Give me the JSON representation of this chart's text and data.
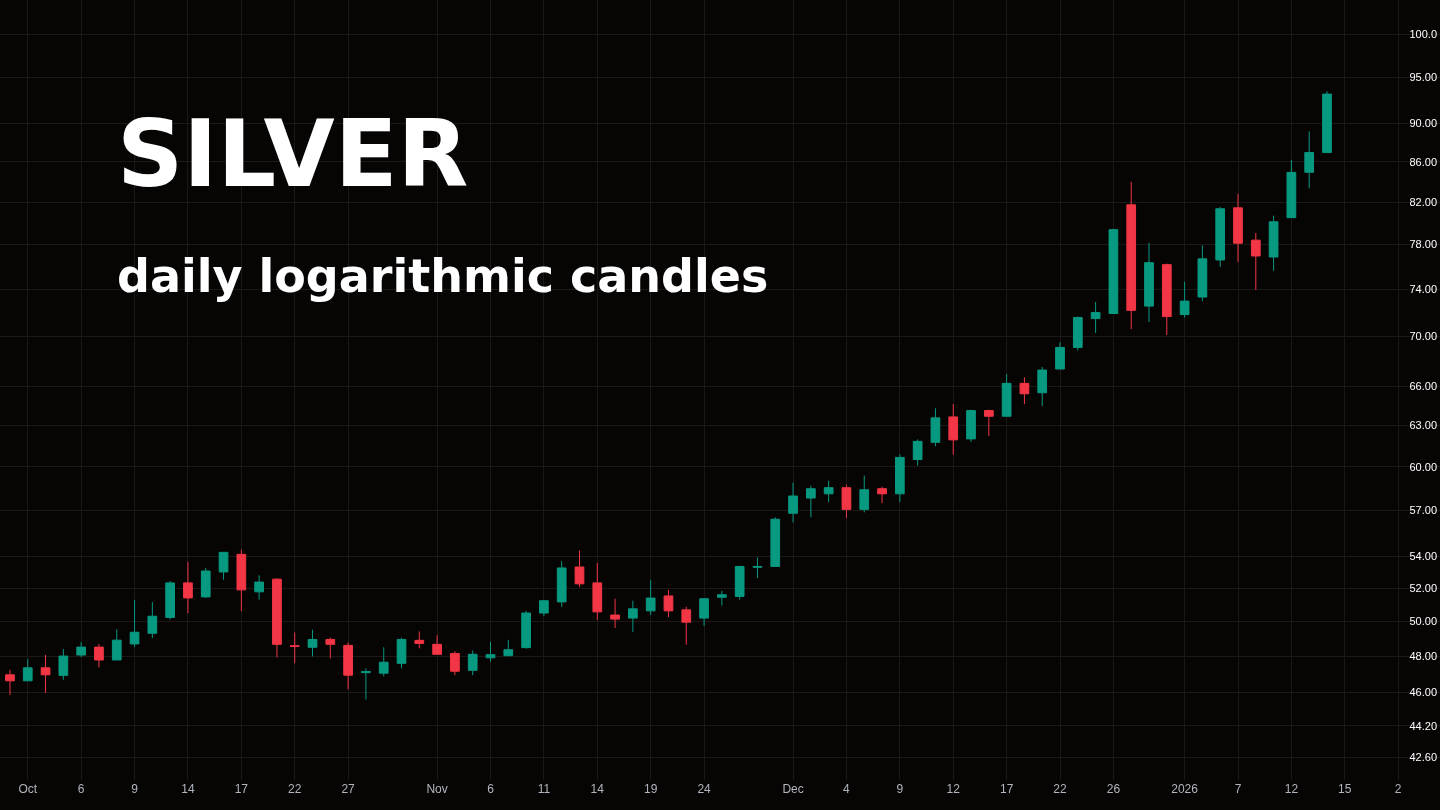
{
  "chart_data": {
    "type": "candlestick",
    "title": "SILVER",
    "subtitle": "daily logarithmic candles",
    "categories": [
      null,
      "Oct",
      null,
      null,
      "6",
      null,
      null,
      "9",
      null,
      null,
      "14",
      null,
      null,
      "17",
      null,
      null,
      "22",
      null,
      null,
      "27",
      null,
      null,
      null,
      null,
      "Nov",
      null,
      null,
      "6",
      null,
      null,
      "11",
      null,
      null,
      "14",
      null,
      null,
      "19",
      null,
      null,
      "24",
      null,
      null,
      null,
      null,
      "Dec",
      null,
      null,
      "4",
      null,
      null,
      "9",
      null,
      null,
      "12",
      null,
      null,
      "17",
      null,
      null,
      "22",
      null,
      null,
      "26",
      null,
      null,
      null,
      "2026",
      null,
      null,
      "7",
      null,
      null,
      "12",
      null,
      null,
      "15",
      null,
      null,
      "2"
    ],
    "ohlc": [
      [
        46.95,
        47.23,
        45.85,
        46.62
      ],
      [
        46.62,
        47.83,
        46.62,
        47.34
      ],
      [
        47.34,
        48.06,
        45.96,
        46.95
      ],
      [
        46.92,
        48.4,
        46.68,
        48.0
      ],
      [
        48.06,
        48.8,
        47.94,
        48.51
      ],
      [
        48.51,
        48.69,
        47.36,
        47.78
      ],
      [
        47.78,
        49.54,
        47.78,
        48.91
      ],
      [
        48.69,
        51.29,
        48.51,
        49.37
      ],
      [
        49.31,
        51.16,
        49.03,
        50.31
      ],
      [
        50.24,
        52.45,
        50.12,
        52.33
      ],
      [
        52.33,
        53.63,
        50.49,
        51.41
      ],
      [
        51.47,
        53.26,
        51.41,
        53.07
      ],
      [
        53.01,
        54.25,
        52.52,
        54.25
      ],
      [
        54.12,
        54.43,
        50.61,
        51.9
      ],
      [
        51.78,
        52.8,
        51.3,
        52.38
      ],
      [
        52.56,
        52.62,
        47.93,
        48.67
      ],
      [
        48.59,
        49.36,
        47.59,
        48.55
      ],
      [
        48.5,
        49.52,
        47.98,
        48.95
      ],
      [
        48.95,
        49.06,
        47.87,
        48.67
      ],
      [
        48.61,
        48.78,
        46.15,
        46.93
      ],
      [
        47.07,
        47.31,
        45.59,
        47.13
      ],
      [
        47.04,
        48.5,
        46.87,
        47.65
      ],
      [
        47.59,
        49.06,
        47.31,
        48.95
      ],
      [
        48.9,
        49.42,
        48.44,
        48.72
      ],
      [
        48.67,
        49.2,
        48.1,
        48.1
      ],
      [
        48.15,
        48.27,
        46.93,
        47.15
      ],
      [
        47.2,
        48.32,
        46.93,
        48.1
      ],
      [
        47.9,
        48.82,
        47.68,
        48.08
      ],
      [
        48.02,
        48.93,
        48.02,
        48.36
      ],
      [
        48.48,
        50.63,
        48.42,
        50.5
      ],
      [
        50.5,
        51.3,
        50.32,
        51.24
      ],
      [
        51.17,
        53.69,
        50.87,
        53.26
      ],
      [
        53.32,
        54.37,
        52.08,
        52.27
      ],
      [
        52.33,
        53.57,
        50.08,
        50.57
      ],
      [
        50.38,
        51.36,
        49.62,
        50.14
      ],
      [
        50.2,
        51.24,
        49.39,
        50.75
      ],
      [
        50.63,
        52.52,
        50.38,
        51.4
      ],
      [
        51.53,
        51.9,
        50.26,
        50.63
      ],
      [
        50.69,
        50.87,
        48.65,
        49.96
      ],
      [
        50.2,
        51.4,
        49.73,
        51.36
      ],
      [
        51.45,
        51.85,
        50.95,
        51.6
      ],
      [
        51.5,
        53.4,
        51.3,
        53.35
      ],
      [
        53.3,
        53.93,
        52.63,
        53.35
      ],
      [
        53.35,
        56.54,
        53.35,
        56.41
      ],
      [
        56.81,
        58.9,
        56.2,
        57.98
      ],
      [
        57.84,
        58.69,
        56.54,
        58.48
      ],
      [
        58.13,
        59.04,
        57.56,
        58.55
      ],
      [
        58.55,
        58.76,
        56.48,
        57.07
      ],
      [
        57.07,
        59.39,
        56.87,
        58.41
      ],
      [
        58.48,
        58.62,
        57.49,
        58.13
      ],
      [
        58.13,
        60.9,
        57.56,
        60.68
      ],
      [
        60.53,
        61.98,
        60.1,
        61.84
      ],
      [
        61.77,
        64.3,
        61.48,
        63.58
      ],
      [
        63.65,
        64.62,
        60.88,
        61.95
      ],
      [
        62.02,
        64.2,
        61.8,
        64.13
      ],
      [
        64.13,
        64.2,
        62.24,
        63.7
      ],
      [
        63.7,
        66.95,
        63.7,
        66.22
      ],
      [
        66.22,
        66.7,
        64.62,
        65.41
      ],
      [
        65.49,
        67.51,
        64.47,
        67.27
      ],
      [
        67.35,
        69.52,
        67.35,
        69.09
      ],
      [
        69.09,
        71.66,
        68.84,
        71.57
      ],
      [
        71.48,
        72.9,
        70.28,
        72.0
      ],
      [
        71.91,
        79.48,
        71.91,
        79.39
      ],
      [
        81.75,
        84.0,
        70.6,
        72.18
      ],
      [
        72.54,
        78.16,
        71.19,
        76.36
      ],
      [
        76.18,
        76.27,
        70.11,
        71.65
      ],
      [
        71.82,
        74.66,
        71.57,
        72.97
      ],
      [
        73.32,
        77.94,
        72.96,
        76.7
      ],
      [
        76.6,
        81.55,
        75.98,
        81.37
      ],
      [
        81.46,
        82.8,
        76.42,
        78.13
      ],
      [
        78.41,
        79.08,
        73.94,
        76.96
      ],
      [
        76.87,
        80.71,
        75.63,
        80.13
      ],
      [
        80.52,
        86.21,
        80.52,
        84.94
      ],
      [
        84.95,
        89.16,
        83.35,
        86.95
      ],
      [
        86.95,
        93.47,
        86.95,
        93.16
      ],
      null,
      null,
      null,
      null
    ],
    "colors": [
      "#f23645",
      "#089981",
      "#f23645",
      "#089981",
      "#089981",
      "#f23645",
      "#089981",
      "#089981",
      "#089981",
      "#089981",
      "#f23645",
      "#089981",
      "#089981",
      "#f23645",
      "#089981",
      "#f23645",
      "#f23645",
      "#089981",
      "#f23645",
      "#f23645",
      "#089981",
      "#089981",
      "#089981",
      "#f23645",
      "#f23645",
      "#f23645",
      "#089981",
      "#089981",
      "#089981",
      "#089981",
      "#089981",
      "#089981",
      "#f23645",
      "#f23645",
      "#f23645",
      "#089981",
      "#089981",
      "#f23645",
      "#f23645",
      "#089981",
      "#089981",
      "#089981",
      "#089981",
      "#089981",
      "#089981",
      "#089981",
      "#089981",
      "#f23645",
      "#089981",
      "#f23645",
      "#089981",
      "#089981",
      "#089981",
      "#f23645",
      "#089981",
      "#f23645",
      "#089981",
      "#f23645",
      "#089981",
      "#089981",
      "#089981",
      "#089981",
      "#089981",
      "#f23645",
      "#089981",
      "#f23645",
      "#089981",
      "#089981",
      "#089981",
      "#f23645",
      "#f23645",
      "#089981",
      "#089981",
      "#089981",
      "#089981",
      null,
      null,
      null,
      null
    ],
    "log": "y",
    "ylim": [
      41.47,
      104.1
    ],
    "yticks": [
      {
        "value": 42.6,
        "label": "42.60"
      },
      {
        "value": 44.2,
        "label": "44.20"
      },
      {
        "value": 46,
        "label": "46.00"
      },
      {
        "value": 48,
        "label": "48.00"
      },
      {
        "value": 50,
        "label": "50.00"
      },
      {
        "value": 52,
        "label": "52.00"
      },
      {
        "value": 54,
        "label": "54.00"
      },
      {
        "value": 57,
        "label": "57.00"
      },
      {
        "value": 60,
        "label": "60.00"
      },
      {
        "value": 63,
        "label": "63.00"
      },
      {
        "value": 66,
        "label": "66.00"
      },
      {
        "value": 70,
        "label": "70.00"
      },
      {
        "value": 74,
        "label": "74.00"
      },
      {
        "value": 78,
        "label": "78.00"
      },
      {
        "value": 82,
        "label": "82.00"
      },
      {
        "value": 86,
        "label": "86.00"
      },
      {
        "value": 90,
        "label": "90.00"
      },
      {
        "value": 95,
        "label": "95.00"
      },
      {
        "value": 100,
        "label": "100.0"
      }
    ],
    "grid": true
  }
}
